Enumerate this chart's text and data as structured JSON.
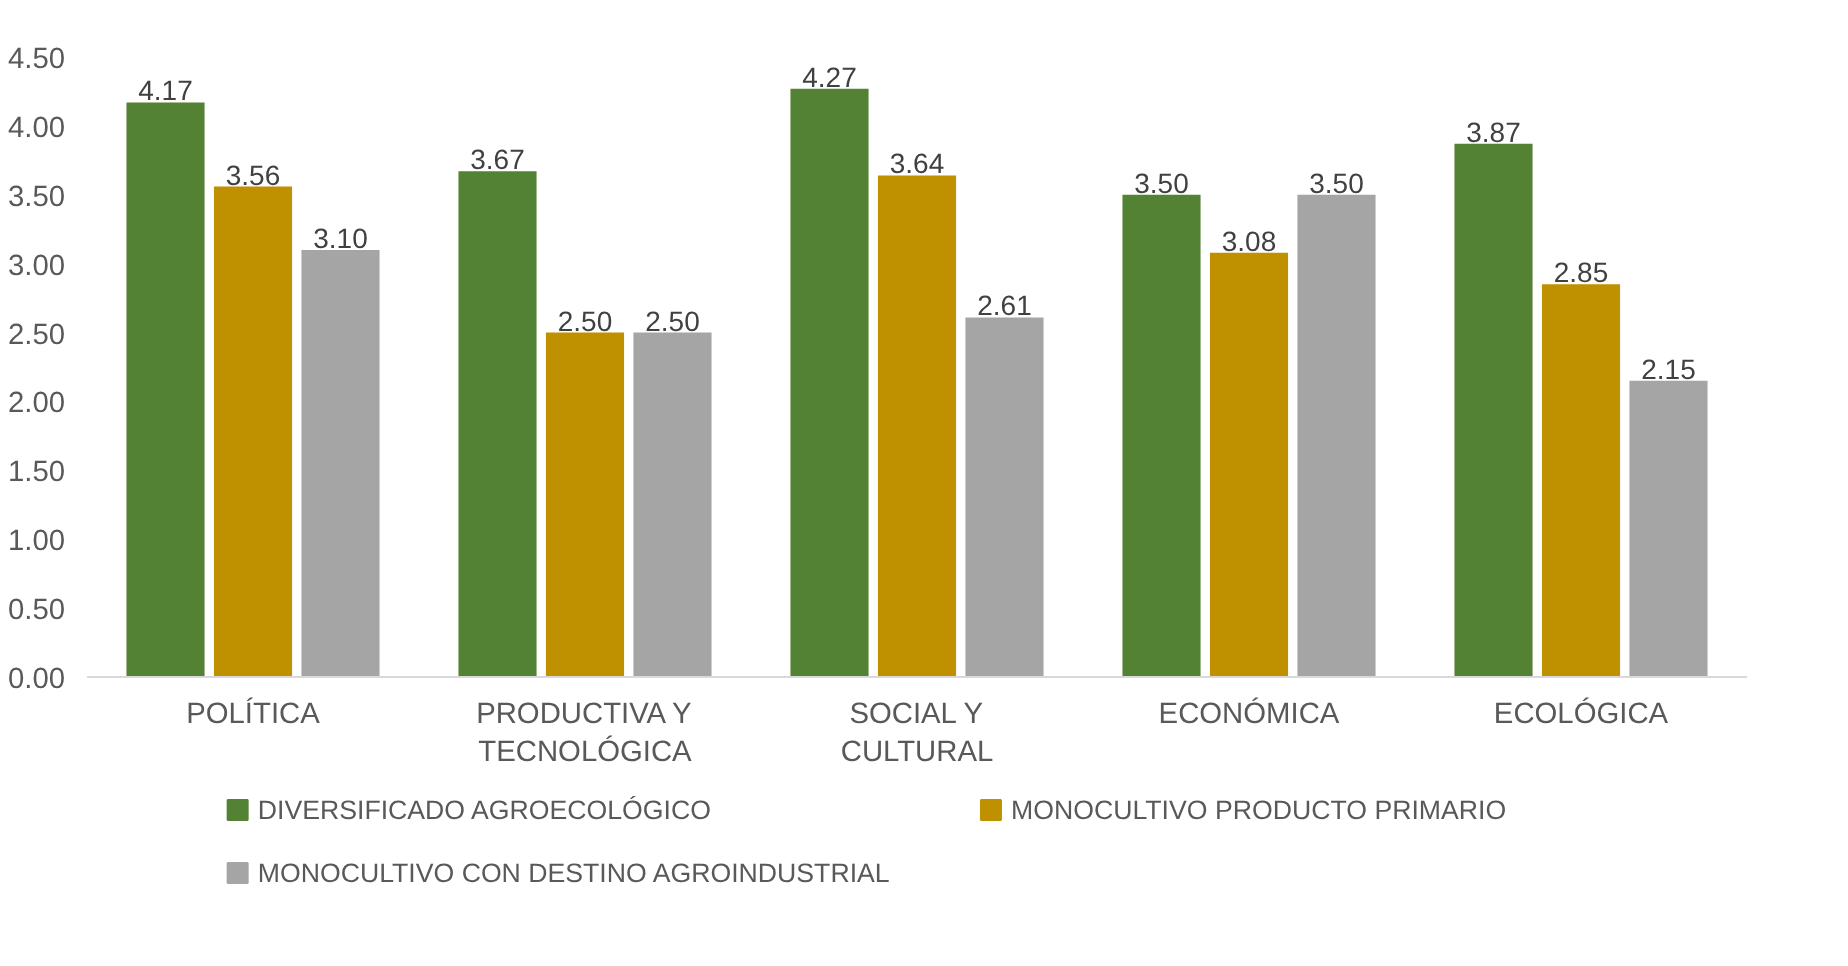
{
  "chart_data": {
    "type": "bar",
    "categories": [
      "POLÍTICA",
      "PRODUCTIVA Y\nTECNOLÓGICA",
      "SOCIAL Y\nCULTURAL",
      "ECONÓMICA",
      "ECOLÓGICA"
    ],
    "series": [
      {
        "name": "DIVERSIFICADO AGROECOLÓGICO",
        "color": "#548235",
        "values": [
          4.17,
          3.67,
          4.27,
          3.5,
          3.87
        ]
      },
      {
        "name": "MONOCULTIVO PRODUCTO PRIMARIO",
        "color": "#bf9000",
        "values": [
          3.56,
          2.5,
          3.64,
          3.08,
          2.85
        ]
      },
      {
        "name": "MONOCULTIVO CON DESTINO AGROINDUSTRIAL",
        "color": "#a5a5a5",
        "values": [
          3.1,
          2.5,
          2.61,
          3.5,
          2.15
        ]
      }
    ],
    "value_labels": [
      [
        "4.17",
        "3.67",
        "4.27",
        "3.50",
        "3.87"
      ],
      [
        "3.56",
        "2.50",
        "3.64",
        "3.08",
        "2.85"
      ],
      [
        "3.10",
        "2.50",
        "2.61",
        "3.50",
        "2.15"
      ]
    ],
    "ylim": [
      0,
      4.5
    ],
    "yticks": [
      {
        "value": 0,
        "label": "0.00"
      },
      {
        "value": 0.5,
        "label": "0.50"
      },
      {
        "value": 1,
        "label": "1.00"
      },
      {
        "value": 1.5,
        "label": "1.50"
      },
      {
        "value": 2,
        "label": "2.00"
      },
      {
        "value": 2.5,
        "label": "2.50"
      },
      {
        "value": 3,
        "label": "3.00"
      },
      {
        "value": 3.5,
        "label": "3.50"
      },
      {
        "value": 4,
        "label": "4.00"
      },
      {
        "value": 4.5,
        "label": "4.50"
      }
    ],
    "grid": false,
    "legend": "bottom"
  }
}
